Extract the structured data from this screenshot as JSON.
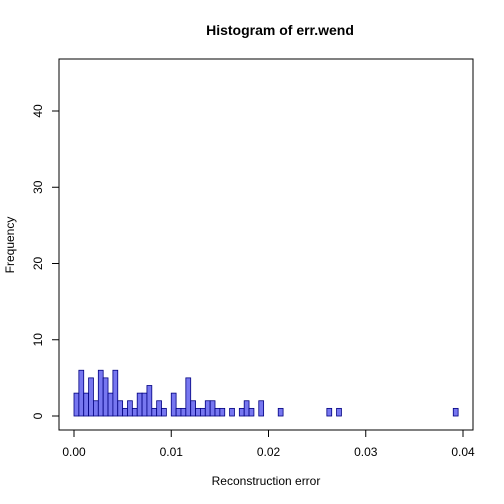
{
  "chart_data": {
    "type": "bar",
    "title": "Histogram of err.wend",
    "xlabel": "Reconstruction error",
    "ylabel": "Frequency",
    "xlim": [
      0,
      0.04
    ],
    "ylim": [
      0,
      45
    ],
    "xticks": [
      0.0,
      0.01,
      0.02,
      0.03,
      0.04
    ],
    "xtick_labels": [
      "0.00",
      "0.01",
      "0.02",
      "0.03",
      "0.04"
    ],
    "yticks": [
      0,
      10,
      20,
      30,
      40
    ],
    "ytick_labels": [
      "0",
      "10",
      "20",
      "30",
      "40"
    ],
    "grid": false,
    "legend": "none",
    "bar_fill": "#7777f0",
    "bar_stroke": "#000080",
    "bin_width": 0.0005,
    "bins": [
      {
        "x": 0.0,
        "count": 3
      },
      {
        "x": 0.0005,
        "count": 6
      },
      {
        "x": 0.001,
        "count": 3
      },
      {
        "x": 0.0015,
        "count": 5
      },
      {
        "x": 0.002,
        "count": 2
      },
      {
        "x": 0.0025,
        "count": 6
      },
      {
        "x": 0.003,
        "count": 5
      },
      {
        "x": 0.0035,
        "count": 3
      },
      {
        "x": 0.004,
        "count": 6
      },
      {
        "x": 0.0045,
        "count": 2
      },
      {
        "x": 0.005,
        "count": 1
      },
      {
        "x": 0.0055,
        "count": 2
      },
      {
        "x": 0.006,
        "count": 1
      },
      {
        "x": 0.0065,
        "count": 3
      },
      {
        "x": 0.007,
        "count": 3
      },
      {
        "x": 0.0075,
        "count": 4
      },
      {
        "x": 0.008,
        "count": 1
      },
      {
        "x": 0.0085,
        "count": 2
      },
      {
        "x": 0.009,
        "count": 1
      },
      {
        "x": 0.0095,
        "count": 0
      },
      {
        "x": 0.01,
        "count": 3
      },
      {
        "x": 0.0105,
        "count": 1
      },
      {
        "x": 0.011,
        "count": 1
      },
      {
        "x": 0.0115,
        "count": 5
      },
      {
        "x": 0.012,
        "count": 2
      },
      {
        "x": 0.0125,
        "count": 1
      },
      {
        "x": 0.013,
        "count": 1
      },
      {
        "x": 0.0135,
        "count": 2
      },
      {
        "x": 0.014,
        "count": 2
      },
      {
        "x": 0.0145,
        "count": 1
      },
      {
        "x": 0.015,
        "count": 1
      },
      {
        "x": 0.0155,
        "count": 0
      },
      {
        "x": 0.016,
        "count": 1
      },
      {
        "x": 0.0165,
        "count": 0
      },
      {
        "x": 0.017,
        "count": 1
      },
      {
        "x": 0.0175,
        "count": 2
      },
      {
        "x": 0.018,
        "count": 1
      },
      {
        "x": 0.0185,
        "count": 0
      },
      {
        "x": 0.019,
        "count": 2
      },
      {
        "x": 0.0195,
        "count": 0
      },
      {
        "x": 0.02,
        "count": 0
      },
      {
        "x": 0.0205,
        "count": 0
      },
      {
        "x": 0.021,
        "count": 1
      },
      {
        "x": 0.0215,
        "count": 0
      },
      {
        "x": 0.022,
        "count": 0
      },
      {
        "x": 0.0225,
        "count": 0
      },
      {
        "x": 0.023,
        "count": 0
      },
      {
        "x": 0.0235,
        "count": 0
      },
      {
        "x": 0.024,
        "count": 0
      },
      {
        "x": 0.0245,
        "count": 0
      },
      {
        "x": 0.025,
        "count": 0
      },
      {
        "x": 0.0255,
        "count": 0
      },
      {
        "x": 0.026,
        "count": 1
      },
      {
        "x": 0.0265,
        "count": 0
      },
      {
        "x": 0.027,
        "count": 1
      },
      {
        "x": 0.0275,
        "count": 0
      },
      {
        "x": 0.028,
        "count": 0
      },
      {
        "x": 0.0285,
        "count": 0
      },
      {
        "x": 0.029,
        "count": 0
      },
      {
        "x": 0.0295,
        "count": 0
      },
      {
        "x": 0.03,
        "count": 0
      },
      {
        "x": 0.0305,
        "count": 0
      },
      {
        "x": 0.031,
        "count": 0
      },
      {
        "x": 0.0315,
        "count": 0
      },
      {
        "x": 0.032,
        "count": 0
      },
      {
        "x": 0.0325,
        "count": 0
      },
      {
        "x": 0.033,
        "count": 0
      },
      {
        "x": 0.0335,
        "count": 0
      },
      {
        "x": 0.034,
        "count": 0
      },
      {
        "x": 0.0345,
        "count": 0
      },
      {
        "x": 0.035,
        "count": 0
      },
      {
        "x": 0.0355,
        "count": 0
      },
      {
        "x": 0.036,
        "count": 0
      },
      {
        "x": 0.0365,
        "count": 0
      },
      {
        "x": 0.037,
        "count": 0
      },
      {
        "x": 0.0375,
        "count": 0
      },
      {
        "x": 0.038,
        "count": 0
      },
      {
        "x": 0.0385,
        "count": 0
      },
      {
        "x": 0.039,
        "count": 1
      }
    ]
  }
}
